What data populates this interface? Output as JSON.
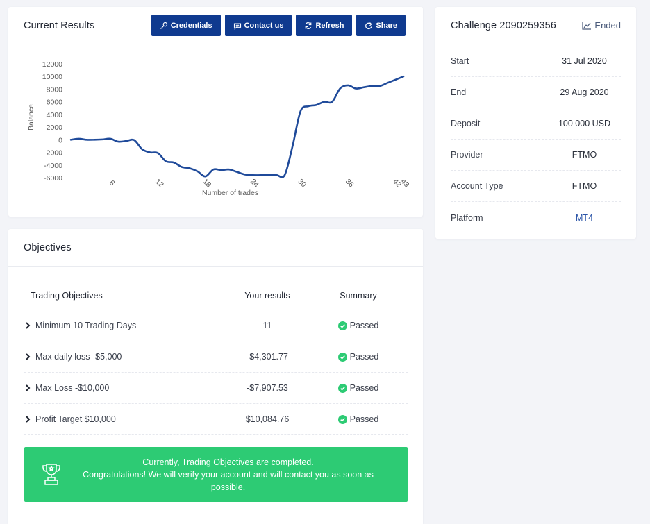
{
  "results": {
    "title": "Current Results",
    "buttons": {
      "credentials": "Credentials",
      "contact": "Contact us",
      "refresh": "Refresh",
      "share": "Share"
    }
  },
  "chart_data": {
    "type": "line",
    "xlabel": "Number of trades",
    "ylabel": "Balance",
    "ylim": [
      -6000,
      12000
    ],
    "xlim": [
      1,
      43
    ],
    "y_ticks": [
      12000,
      10000,
      8000,
      6000,
      4000,
      2000,
      0,
      -2000,
      -4000,
      -6000
    ],
    "x_ticks": [
      6,
      12,
      18,
      24,
      30,
      36,
      42,
      43
    ],
    "series": [
      {
        "x": [
          1,
          2,
          3,
          4,
          5,
          6,
          7,
          8,
          9,
          10,
          11,
          12,
          13,
          14,
          15,
          16,
          17,
          18,
          19,
          20,
          21,
          22,
          23,
          24,
          25,
          26,
          27,
          28,
          29,
          30,
          31,
          32,
          33,
          34,
          35,
          36,
          37,
          38,
          39,
          40,
          41,
          42,
          43
        ],
        "y": [
          0,
          150,
          0,
          0,
          50,
          150,
          -300,
          -200,
          -50,
          -1500,
          -2000,
          -2100,
          -3400,
          -3600,
          -4300,
          -4500,
          -5000,
          -5800,
          -4700,
          -4800,
          -4700,
          -5100,
          -5500,
          -5600,
          -5600,
          -5600,
          -5600,
          -5600,
          -1000,
          4500,
          5300,
          5500,
          6000,
          6000,
          8100,
          8600,
          8100,
          8300,
          8500,
          8500,
          9000,
          9500,
          10000
        ]
      }
    ],
    "color": "#1f4a9a"
  },
  "challenge": {
    "title": "Challenge 2090259356",
    "status": "Ended",
    "rows": [
      {
        "label": "Start",
        "value": "31 Jul 2020"
      },
      {
        "label": "End",
        "value": "29 Aug 2020"
      },
      {
        "label": "Deposit",
        "value": "100 000 USD"
      },
      {
        "label": "Provider",
        "value": "FTMO"
      },
      {
        "label": "Account Type",
        "value": "FTMO"
      },
      {
        "label": "Platform",
        "value": "MT4"
      }
    ]
  },
  "objectives": {
    "title": "Objectives",
    "headers": {
      "objective": "Trading Objectives",
      "result": "Your results",
      "summary": "Summary"
    },
    "rows": [
      {
        "objective": "Minimum 10 Trading Days",
        "result": "11",
        "summary": "Passed"
      },
      {
        "objective": "Max daily loss -$5,000",
        "result": "-$4,301.77",
        "summary": "Passed"
      },
      {
        "objective": "Max Loss -$10,000",
        "result": "-$7,907.53",
        "summary": "Passed"
      },
      {
        "objective": "Profit Target $10,000",
        "result": "$10,084.76",
        "summary": "Passed"
      }
    ],
    "success_line1": "Currently, Trading Objectives are completed.",
    "success_line2": "Congratulations! We will verify your account and will contact you as soon as possible."
  },
  "colors": {
    "primary": "#0f3a8f",
    "success": "#2dcb74",
    "line": "#1f4a9a"
  }
}
